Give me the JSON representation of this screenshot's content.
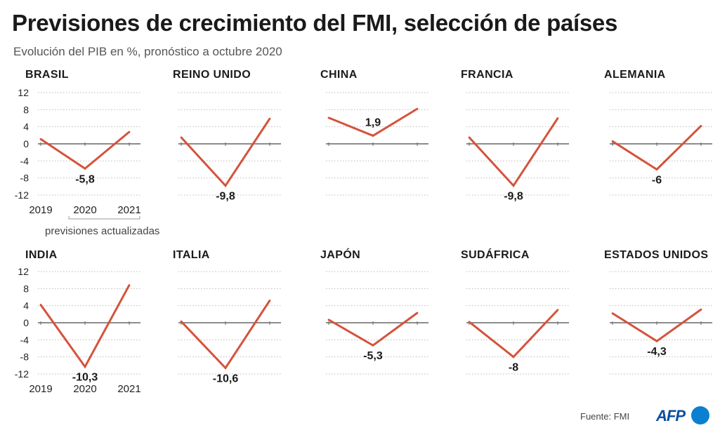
{
  "title": "Previsiones de crecimiento del FMI, selección de países",
  "subtitle": "Evolución del PIB en %, pronóstico a octubre 2020",
  "source": "Fuente: FMI",
  "logo_text": "AFP",
  "bracket_note": "previsiones actualizadas",
  "colors": {
    "line": "#d4533b",
    "grid": "#bbbbbb",
    "axis": "#666666",
    "logo": "#0b7fd0"
  },
  "chart_data": {
    "type": "line",
    "x": [
      "2019",
      "2020",
      "2021"
    ],
    "ylim": [
      -12,
      12
    ],
    "yticks": [
      12,
      8,
      4,
      0,
      -4,
      -8,
      -12
    ],
    "grid": true,
    "panels": [
      {
        "name": "Brasil",
        "values": [
          1.1,
          -5.8,
          2.8
        ],
        "label": "-5,8"
      },
      {
        "name": "Reino Unido",
        "values": [
          1.5,
          -9.8,
          5.9
        ],
        "label": "-9,8"
      },
      {
        "name": "China",
        "values": [
          6.1,
          1.9,
          8.2
        ],
        "label": "1,9"
      },
      {
        "name": "Francia",
        "values": [
          1.5,
          -9.8,
          6.0
        ],
        "label": "-9,8"
      },
      {
        "name": "Alemania",
        "values": [
          0.6,
          -6.0,
          4.2
        ],
        "label": "-6"
      },
      {
        "name": "India",
        "values": [
          4.2,
          -10.3,
          8.8
        ],
        "label": "-10,3"
      },
      {
        "name": "Italia",
        "values": [
          0.3,
          -10.6,
          5.2
        ],
        "label": "-10,6"
      },
      {
        "name": "Japón",
        "values": [
          0.7,
          -5.3,
          2.3
        ],
        "label": "-5,3"
      },
      {
        "name": "Sudáfrica",
        "values": [
          0.2,
          -8.0,
          3.0
        ],
        "label": "-8"
      },
      {
        "name": "Estados Unidos",
        "values": [
          2.2,
          -4.3,
          3.1
        ],
        "label": "-4,3"
      }
    ]
  }
}
